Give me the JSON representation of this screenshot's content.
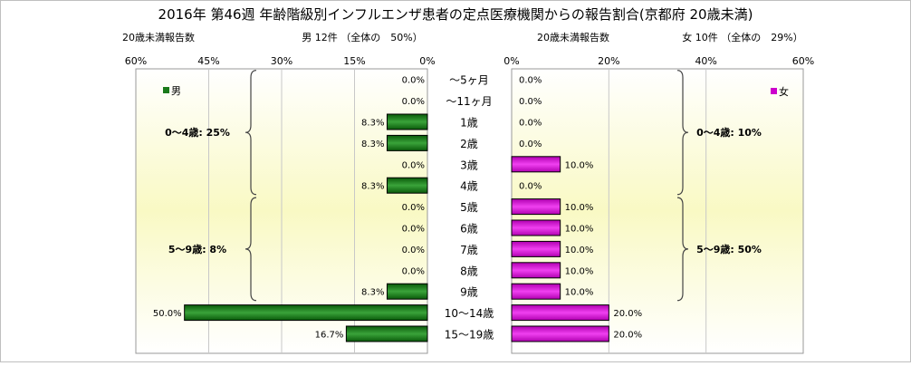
{
  "chart_data": {
    "type": "bar",
    "title": "2016年 第46週 年齢階級別インフルエンザ患者の定点医療機関からの報告割合(京都府 20歳未満)",
    "categories": [
      "～5ヶ月",
      "～11ヶ月",
      "1歳",
      "2歳",
      "3歳",
      "4歳",
      "5歳",
      "6歳",
      "7歳",
      "8歳",
      "9歳",
      "10～14歳",
      "15～19歳"
    ],
    "unit": "%",
    "male": {
      "legend": "男",
      "header_left": "20歳未満報告数",
      "header_center": "男 12件 （全体の　50%）",
      "xlim": [
        0,
        60
      ],
      "ticks": [
        60,
        45,
        30,
        15,
        0
      ],
      "color": "#1a7a1a",
      "values": [
        0.0,
        0.0,
        8.3,
        8.3,
        0.0,
        8.3,
        0.0,
        0.0,
        0.0,
        0.0,
        8.3,
        50.0,
        16.7
      ],
      "labels": [
        "0.0%",
        "0.0%",
        "8.3%",
        "8.3%",
        "0.0%",
        "8.3%",
        "0.0%",
        "0.0%",
        "0.0%",
        "0.0%",
        "8.3%",
        "50.0%",
        "16.7%"
      ],
      "groups": [
        {
          "label": "0～4歳: 25%",
          "from": 0,
          "to": 5
        },
        {
          "label": "5～9歳: 8%",
          "from": 6,
          "to": 10
        }
      ]
    },
    "female": {
      "legend": "女",
      "header_left": "20歳未満報告数",
      "header_center": "女 10件 （全体の　29%）",
      "xlim": [
        0,
        60
      ],
      "ticks": [
        0,
        20,
        40,
        60
      ],
      "color": "#cc00cc",
      "values": [
        0.0,
        0.0,
        0.0,
        0.0,
        10.0,
        0.0,
        10.0,
        10.0,
        10.0,
        10.0,
        10.0,
        20.0,
        20.0
      ],
      "labels": [
        "0.0%",
        "0.0%",
        "0.0%",
        "0.0%",
        "10.0%",
        "0.0%",
        "10.0%",
        "10.0%",
        "10.0%",
        "10.0%",
        "10.0%",
        "20.0%",
        "20.0%"
      ],
      "groups": [
        {
          "label": "0～4歳: 10%",
          "from": 0,
          "to": 5
        },
        {
          "label": "5～9歳: 50%",
          "from": 6,
          "to": 10
        }
      ]
    },
    "grid": true
  }
}
